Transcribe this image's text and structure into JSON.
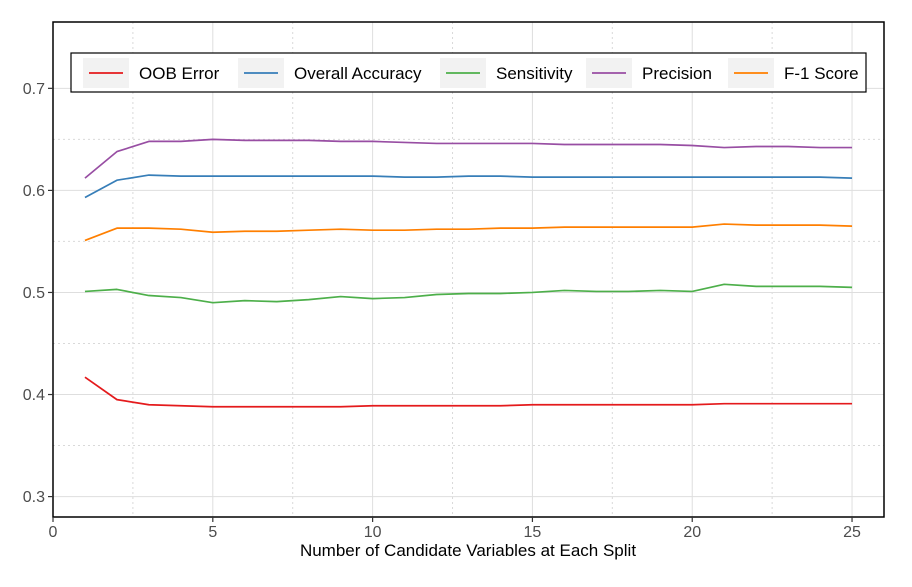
{
  "chart_data": {
    "type": "line",
    "title": "",
    "xlabel": "Number of Candidate Variables at Each Split",
    "ylabel": "",
    "xlim": [
      0,
      26
    ],
    "ylim": [
      0.28,
      0.765
    ],
    "x_ticks": [
      0,
      5,
      10,
      15,
      20,
      25
    ],
    "y_ticks": [
      0.3,
      0.4,
      0.5,
      0.6,
      0.7
    ],
    "x_tick_labels": [
      "0",
      "5",
      "10",
      "15",
      "20",
      "25"
    ],
    "y_tick_labels": [
      "0.3",
      "0.4",
      "0.5",
      "0.6",
      "0.7"
    ],
    "grid": true,
    "legend_position": "top",
    "x": [
      1,
      2,
      3,
      4,
      5,
      6,
      7,
      8,
      9,
      10,
      11,
      12,
      13,
      14,
      15,
      16,
      17,
      18,
      19,
      20,
      21,
      22,
      23,
      24,
      25
    ],
    "series": [
      {
        "name": "OOB Error",
        "color": "#e41a1c",
        "values": [
          0.417,
          0.395,
          0.39,
          0.389,
          0.388,
          0.388,
          0.388,
          0.388,
          0.388,
          0.389,
          0.389,
          0.389,
          0.389,
          0.389,
          0.39,
          0.39,
          0.39,
          0.39,
          0.39,
          0.39,
          0.391,
          0.391,
          0.391,
          0.391,
          0.391
        ]
      },
      {
        "name": "Overall Accuracy",
        "color": "#377eb8",
        "values": [
          0.593,
          0.61,
          0.615,
          0.614,
          0.614,
          0.614,
          0.614,
          0.614,
          0.614,
          0.614,
          0.613,
          0.613,
          0.614,
          0.614,
          0.613,
          0.613,
          0.613,
          0.613,
          0.613,
          0.613,
          0.613,
          0.613,
          0.613,
          0.613,
          0.612
        ]
      },
      {
        "name": "Sensitivity",
        "color": "#4daf4a",
        "values": [
          0.501,
          0.503,
          0.497,
          0.495,
          0.49,
          0.492,
          0.491,
          0.493,
          0.496,
          0.494,
          0.495,
          0.498,
          0.499,
          0.499,
          0.5,
          0.502,
          0.501,
          0.501,
          0.502,
          0.501,
          0.508,
          0.506,
          0.506,
          0.506,
          0.505
        ]
      },
      {
        "name": "Precision",
        "color": "#984ea3",
        "values": [
          0.612,
          0.638,
          0.648,
          0.648,
          0.65,
          0.649,
          0.649,
          0.649,
          0.648,
          0.648,
          0.647,
          0.646,
          0.646,
          0.646,
          0.646,
          0.645,
          0.645,
          0.645,
          0.645,
          0.644,
          0.642,
          0.643,
          0.643,
          0.642,
          0.642
        ]
      },
      {
        "name": "F-1 Score",
        "color": "#ff7f00",
        "values": [
          0.551,
          0.563,
          0.563,
          0.562,
          0.559,
          0.56,
          0.56,
          0.561,
          0.562,
          0.561,
          0.561,
          0.562,
          0.562,
          0.563,
          0.563,
          0.564,
          0.564,
          0.564,
          0.564,
          0.564,
          0.567,
          0.566,
          0.566,
          0.566,
          0.565
        ]
      }
    ]
  }
}
